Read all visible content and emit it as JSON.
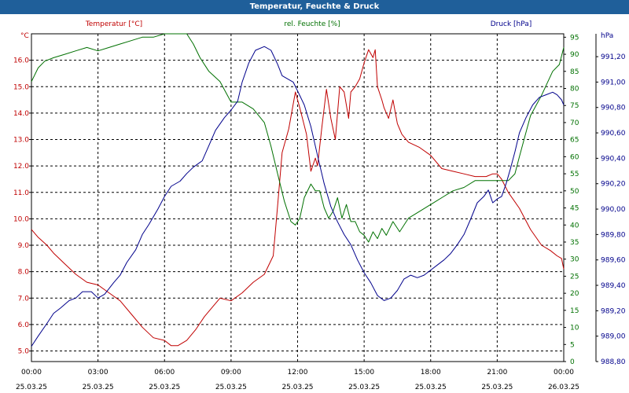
{
  "window": {
    "title": "Temperatur, Feuchte & Druck"
  },
  "colors": {
    "temperature": "#c00000",
    "humidity": "#007000",
    "pressure": "#00008b",
    "titlebar": "#1f5f9a",
    "grid": "#000000"
  },
  "chart_data": {
    "type": "line",
    "title": "Temperatur, Feuchte & Druck",
    "grid": true,
    "x_ticks": [
      {
        "time": "00:00",
        "date": "25.03.25"
      },
      {
        "time": "03:00",
        "date": "25.03.25"
      },
      {
        "time": "06:00",
        "date": "25.03.25"
      },
      {
        "time": "09:00",
        "date": "25.03.25"
      },
      {
        "time": "12:00",
        "date": "25.03.25"
      },
      {
        "time": "15:00",
        "date": "25.03.25"
      },
      {
        "time": "18:00",
        "date": "25.03.25"
      },
      {
        "time": "21:00",
        "date": "25.03.25"
      },
      {
        "time": "00:00",
        "date": "26.03.25"
      }
    ],
    "xlim": [
      0,
      24
    ],
    "axes": {
      "temperature": {
        "label": "Temperatur [°C]",
        "unit": "°C",
        "side": "left",
        "ylim": [
          4.6,
          17.0
        ],
        "ticks": [
          "5.0",
          "6.0",
          "7.0",
          "8.0",
          "9.0",
          "10.0",
          "11.0",
          "12.0",
          "13.0",
          "14.0",
          "15.0",
          "16.0"
        ]
      },
      "humidity": {
        "label": "rel. Feuchte [%]",
        "unit": "%",
        "side": "right",
        "ylim": [
          0,
          96
        ],
        "ticks": [
          "0",
          "5",
          "10",
          "15",
          "20",
          "25",
          "30",
          "35",
          "40",
          "45",
          "50",
          "55",
          "60",
          "65",
          "70",
          "75",
          "80",
          "85",
          "90",
          "95"
        ]
      },
      "pressure": {
        "label": "Druck [hPa]",
        "unit": "hPa",
        "side": "right",
        "ylim": [
          988.8,
          991.38
        ],
        "ticks": [
          "988,80",
          "989,00",
          "989,20",
          "989,40",
          "989,60",
          "989,80",
          "990,00",
          "990,20",
          "990,40",
          "990,60",
          "990,80",
          "991,00",
          "991,20"
        ]
      }
    },
    "series": [
      {
        "name": "Temperatur [°C]",
        "axis": "temperature",
        "x": [
          0,
          0.3,
          0.7,
          1.0,
          1.5,
          2.0,
          2.5,
          3.0,
          3.5,
          4.0,
          4.5,
          5.0,
          5.5,
          6.0,
          6.3,
          6.6,
          7.0,
          7.4,
          7.8,
          8.1,
          8.5,
          9.0,
          9.5,
          10.0,
          10.5,
          10.9,
          11.1,
          11.3,
          11.6,
          11.9,
          12.1,
          12.4,
          12.6,
          12.8,
          12.9,
          13.1,
          13.3,
          13.5,
          13.7,
          13.9,
          14.1,
          14.3,
          14.4,
          14.6,
          14.8,
          15.0,
          15.2,
          15.4,
          15.5,
          15.6,
          15.8,
          15.9,
          16.1,
          16.3,
          16.5,
          16.7,
          17.0,
          17.5,
          18.0,
          18.5,
          19.0,
          19.5,
          20.0,
          20.5,
          20.8,
          21.0,
          21.2,
          21.5,
          22.0,
          22.5,
          23.0,
          23.4,
          23.7,
          23.9,
          24.0
        ],
        "values": [
          9.6,
          9.3,
          9.0,
          8.7,
          8.3,
          7.9,
          7.6,
          7.5,
          7.2,
          6.9,
          6.4,
          5.9,
          5.5,
          5.4,
          5.2,
          5.2,
          5.4,
          5.8,
          6.3,
          6.6,
          7.0,
          6.9,
          7.2,
          7.6,
          7.9,
          8.6,
          10.5,
          12.5,
          13.4,
          14.8,
          14.2,
          13.2,
          11.8,
          12.3,
          12.0,
          13.5,
          14.9,
          13.8,
          13.0,
          15.0,
          14.8,
          13.8,
          14.8,
          15.0,
          15.3,
          15.9,
          16.4,
          16.1,
          16.4,
          15.0,
          14.5,
          14.2,
          13.8,
          14.5,
          13.6,
          13.2,
          12.9,
          12.7,
          12.4,
          11.9,
          11.8,
          11.7,
          11.6,
          11.6,
          11.7,
          11.7,
          11.5,
          11.0,
          10.4,
          9.6,
          9.0,
          8.8,
          8.6,
          8.5,
          8.1
        ]
      },
      {
        "name": "rel. Feuchte [%]",
        "axis": "humidity",
        "x": [
          0,
          0.3,
          0.6,
          1.0,
          1.5,
          2.0,
          2.5,
          3.0,
          3.5,
          4.0,
          4.5,
          5.0,
          5.5,
          6.0,
          6.5,
          7.0,
          7.3,
          7.6,
          8.0,
          8.5,
          9.0,
          9.5,
          10.0,
          10.5,
          10.8,
          11.1,
          11.4,
          11.7,
          11.9,
          12.1,
          12.3,
          12.6,
          12.8,
          13.0,
          13.2,
          13.4,
          13.6,
          13.8,
          14.0,
          14.2,
          14.4,
          14.6,
          14.8,
          15.0,
          15.2,
          15.4,
          15.6,
          15.8,
          16.0,
          16.3,
          16.6,
          17.0,
          17.5,
          18.0,
          18.5,
          19.0,
          19.5,
          20.0,
          20.5,
          21.0,
          21.5,
          21.8,
          22.0,
          22.5,
          23.0,
          23.5,
          23.8,
          24.0
        ],
        "values": [
          82,
          86,
          88,
          89,
          90,
          91,
          92,
          91,
          92,
          93,
          94,
          95,
          95,
          96,
          96,
          96,
          93,
          89,
          85,
          82,
          76,
          76,
          74,
          70,
          63,
          55,
          47,
          41,
          40,
          42,
          48,
          52,
          50,
          50,
          45,
          42,
          44,
          48,
          42,
          46,
          41,
          41,
          38,
          37,
          35,
          38,
          36,
          39,
          37,
          41,
          38,
          42,
          44,
          46,
          48,
          50,
          51,
          53,
          53,
          53,
          53,
          55,
          60,
          72,
          78,
          85,
          87,
          92
        ]
      },
      {
        "name": "Druck [hPa]",
        "axis": "pressure",
        "x": [
          0,
          0.3,
          0.7,
          1.0,
          1.3,
          1.7,
          2.0,
          2.3,
          2.7,
          3.0,
          3.3,
          3.7,
          4.0,
          4.3,
          4.7,
          5.0,
          5.3,
          5.7,
          6.0,
          6.3,
          6.7,
          7.0,
          7.3,
          7.7,
          8.0,
          8.3,
          8.7,
          9.0,
          9.3,
          9.5,
          9.8,
          10.1,
          10.5,
          10.8,
          11.1,
          11.3,
          11.6,
          11.8,
          12.0,
          12.3,
          12.6,
          12.9,
          13.2,
          13.5,
          13.8,
          14.1,
          14.4,
          14.7,
          15.0,
          15.3,
          15.6,
          15.9,
          16.2,
          16.5,
          16.8,
          17.1,
          17.4,
          17.7,
          18.0,
          18.3,
          18.6,
          18.9,
          19.2,
          19.5,
          19.8,
          20.1,
          20.4,
          20.6,
          20.8,
          21.0,
          21.2,
          21.4,
          21.6,
          21.8,
          22.0,
          22.3,
          22.6,
          22.9,
          23.2,
          23.5,
          23.7,
          23.9,
          24.0
        ],
        "values": [
          988.92,
          989.0,
          989.1,
          989.18,
          989.22,
          989.28,
          989.3,
          989.35,
          989.35,
          989.3,
          989.33,
          989.42,
          989.48,
          989.58,
          989.68,
          989.8,
          989.88,
          990.0,
          990.1,
          990.18,
          990.22,
          990.28,
          990.33,
          990.38,
          990.5,
          990.62,
          990.72,
          990.78,
          990.85,
          991.0,
          991.15,
          991.25,
          991.28,
          991.25,
          991.14,
          991.05,
          991.02,
          991.0,
          990.93,
          990.82,
          990.65,
          990.42,
          990.2,
          990.02,
          989.9,
          989.8,
          989.72,
          989.6,
          989.5,
          989.42,
          989.32,
          989.28,
          989.3,
          989.36,
          989.45,
          989.48,
          989.46,
          989.48,
          989.52,
          989.56,
          989.6,
          989.65,
          989.72,
          989.8,
          989.92,
          990.05,
          990.1,
          990.15,
          990.05,
          990.08,
          990.1,
          990.2,
          990.32,
          990.45,
          990.6,
          990.72,
          990.82,
          990.88,
          990.9,
          990.92,
          990.9,
          990.86,
          990.82
        ]
      }
    ]
  }
}
